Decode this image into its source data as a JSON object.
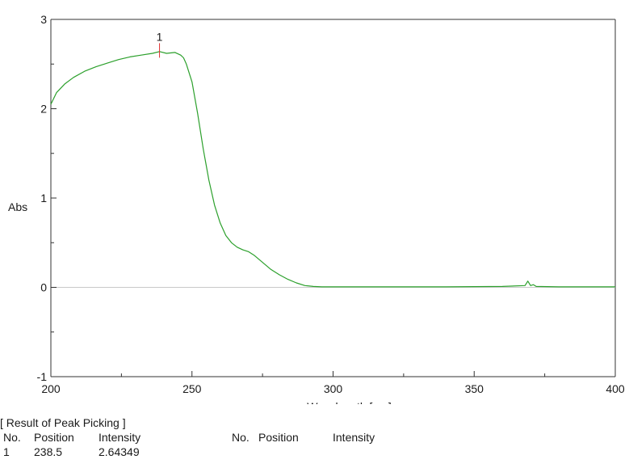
{
  "chart_data": {
    "type": "line",
    "xlabel": "Wavelength [nm]",
    "ylabel": "Abs",
    "xlim": [
      200,
      400
    ],
    "ylim": [
      -1,
      3
    ],
    "x_ticks": [
      200,
      250,
      300,
      350,
      400
    ],
    "y_ticks": [
      -1,
      0,
      1,
      2,
      3
    ],
    "grid": false,
    "series": [
      {
        "color": "#2ca02c",
        "x": [
          200,
          202,
          205,
          208,
          212,
          216,
          220,
          224,
          228,
          232,
          236,
          238.5,
          241,
          244,
          246,
          247,
          248,
          250,
          252,
          254,
          256,
          258,
          260,
          262,
          264,
          266,
          268,
          270,
          272,
          275,
          278,
          281,
          284,
          287,
          290,
          293,
          296,
          300,
          320,
          340,
          360,
          368,
          369,
          370,
          371,
          372,
          380,
          390,
          400
        ],
        "y": [
          2.05,
          2.18,
          2.28,
          2.35,
          2.42,
          2.47,
          2.51,
          2.55,
          2.58,
          2.6,
          2.62,
          2.64,
          2.62,
          2.63,
          2.6,
          2.57,
          2.5,
          2.3,
          1.95,
          1.55,
          1.2,
          0.92,
          0.72,
          0.58,
          0.5,
          0.45,
          0.42,
          0.4,
          0.36,
          0.28,
          0.2,
          0.14,
          0.09,
          0.05,
          0.02,
          0.01,
          0.005,
          0.005,
          0.005,
          0.005,
          0.01,
          0.02,
          0.07,
          0.02,
          0.03,
          0.01,
          0.005,
          0.005,
          0.005
        ]
      }
    ],
    "baseline": {
      "y": 0,
      "color": "#c8c8c8"
    },
    "annotations": [
      {
        "label": "1",
        "x": 238.5,
        "y": 2.64349,
        "color": "#e03030"
      }
    ]
  },
  "peak_table": {
    "title": "[ Result of Peak Picking ]",
    "headers": [
      "No.",
      "Position",
      "Intensity",
      "No.",
      "Position",
      "Intensity"
    ],
    "rows": [
      {
        "no": "1",
        "position": "238.5",
        "intensity": "2.64349"
      }
    ]
  }
}
